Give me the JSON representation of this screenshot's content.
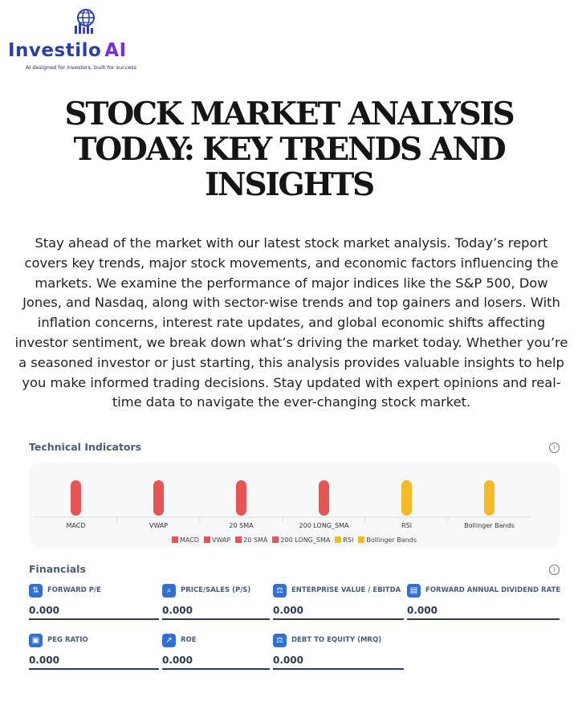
{
  "logo": {
    "name": "Investilo",
    "ai": "AI",
    "tagline": "AI designed for investors, built for success",
    "colors": {
      "primary": "#2b3fa8",
      "accent": "#7b2fd6"
    }
  },
  "title_lines": [
    "STOCK MARKET ANALYSIS",
    "TODAY: KEY TRENDS AND",
    "INSIGHTS"
  ],
  "intro": "Stay ahead of the market with our latest stock market analysis. Today’s report covers key trends, major stock movements, and economic factors influencing the markets. We examine the performance of major indices like the S&P 500, Dow Jones, and Nasdaq, along with sector-wise trends and top gainers and losers. With inflation concerns, interest rate updates, and global economic shifts affecting investor sentiment, we break down what’s driving the market today. Whether you’re a seasoned investor or just starting, this analysis provides valuable insights to help you make informed trading decisions. Stay updated with expert opinions and real-time data to navigate the ever-changing stock market.",
  "technical": {
    "title": "Technical Indicators",
    "info_icon": "info-icon"
  },
  "chart_data": {
    "type": "bar",
    "categories": [
      "MACD",
      "VWAP",
      "20 SMA",
      "200 LONG_SMA",
      "RSI",
      "Bollinger Bands"
    ],
    "values": [
      1,
      1,
      1,
      1,
      1,
      1
    ],
    "colors": [
      "#e85454",
      "#e85454",
      "#e85454",
      "#e85454",
      "#f7b924",
      "#f7b924"
    ],
    "legend": [
      "MACD",
      "VWAP",
      "20 SMA",
      "200 LONG_SMA",
      "RSI",
      "Bollinger Bands"
    ],
    "legend_placement": "bottom",
    "grid": false,
    "title": "",
    "xlabel": "",
    "ylabel": ""
  },
  "financials": {
    "title": "Financials",
    "info_icon": "info-icon",
    "items": [
      {
        "label": "FORWARD P/E",
        "value": "0.000",
        "icon": "sort-icon"
      },
      {
        "label": "PRICE/SALES (P/S)",
        "value": "0.000",
        "icon": "magnifier-icon"
      },
      {
        "label": "ENTERPRISE VALUE / EBITDA",
        "value": "0.000",
        "icon": "scale-icon"
      },
      {
        "label": "FORWARD ANNUAL DIVIDEND RATE",
        "value": "0.000",
        "icon": "document-icon"
      },
      {
        "label": "PEG RATIO",
        "value": "0.000",
        "icon": "cash-icon"
      },
      {
        "label": "ROE",
        "value": "0.000",
        "icon": "chart-growth-icon"
      },
      {
        "label": "DEBT TO EQUITY (MRQ)",
        "value": "0.000",
        "icon": "scale-icon"
      }
    ]
  }
}
